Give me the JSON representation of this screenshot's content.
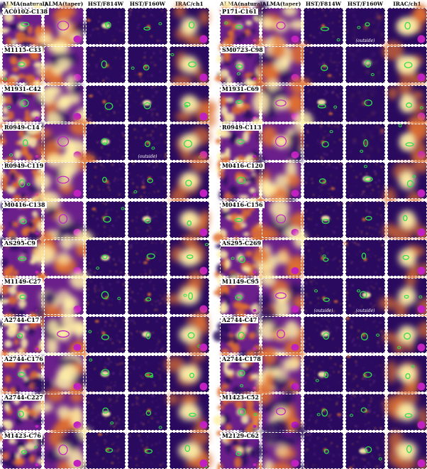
{
  "column_headers": [
    "ALMA(natural)",
    "ALMA(taper)",
    "HST/F814W",
    "HST/F160W",
    "IRAC/ch1"
  ],
  "panels": [
    {
      "rows": [
        {
          "label": "AC0102-C138",
          "outside": [
            "",
            "",
            "",
            "",
            ""
          ]
        },
        {
          "label": "M1115-C33",
          "outside": [
            "",
            "",
            "",
            "",
            ""
          ]
        },
        {
          "label": "M1931-C42",
          "outside": [
            "",
            "",
            "",
            "",
            ""
          ]
        },
        {
          "label": "R0949-C14",
          "outside": [
            "",
            "",
            "",
            "(outside)",
            ""
          ]
        },
        {
          "label": "R0949-C119",
          "outside": [
            "",
            "",
            "",
            "",
            ""
          ]
        },
        {
          "label": "M0416-C138",
          "outside": [
            "",
            "",
            "",
            "",
            ""
          ]
        },
        {
          "label": "AS295-C9",
          "outside": [
            "",
            "",
            "",
            "",
            ""
          ]
        },
        {
          "label": "M1149-C27",
          "outside": [
            "",
            "",
            "",
            "",
            ""
          ]
        },
        {
          "label": "A2744-C17",
          "outside": [
            "",
            "",
            "",
            "",
            ""
          ]
        },
        {
          "label": "A2744-C176",
          "outside": [
            "",
            "",
            "",
            "",
            ""
          ]
        },
        {
          "label": "A2744-C227",
          "outside": [
            "",
            "",
            "",
            "",
            ""
          ]
        },
        {
          "label": "M1423-C76",
          "outside": [
            "",
            "",
            "",
            "",
            ""
          ]
        }
      ]
    },
    {
      "rows": [
        {
          "label": "P171-C161",
          "outside": [
            "",
            "",
            "",
            "(outside)",
            ""
          ]
        },
        {
          "label": "SM0723-C98",
          "outside": [
            "",
            "",
            "",
            "",
            ""
          ]
        },
        {
          "label": "M1931-C69",
          "outside": [
            "",
            "",
            "",
            "",
            ""
          ]
        },
        {
          "label": "R0949-C113",
          "outside": [
            "",
            "",
            "",
            "",
            ""
          ]
        },
        {
          "label": "M0416-C120",
          "outside": [
            "",
            "",
            "",
            "",
            ""
          ]
        },
        {
          "label": "M0416-C156",
          "outside": [
            "",
            "",
            "",
            "",
            ""
          ]
        },
        {
          "label": "AS295-C269",
          "outside": [
            "",
            "",
            "",
            "",
            ""
          ]
        },
        {
          "label": "M1149-C95",
          "outside": [
            "",
            "",
            "(outside)",
            "(outside)",
            ""
          ]
        },
        {
          "label": "A2744-C47",
          "outside": [
            "",
            "",
            "",
            "",
            ""
          ]
        },
        {
          "label": "A2744-C178",
          "outside": [
            "",
            "",
            "",
            "",
            ""
          ]
        },
        {
          "label": "M1423-C52",
          "outside": [
            "",
            "",
            "",
            "",
            ""
          ]
        },
        {
          "label": "M2129-C62",
          "outside": [
            "",
            "",
            "",
            "",
            ""
          ]
        }
      ]
    }
  ],
  "colors": {
    "background_dark": "#2a0a5e",
    "mid_purple": "#6a1f8a",
    "orange": "#e07030",
    "yellow": "#fff0a8",
    "contour_green": "#2ee04a",
    "contour_magenta": "#c020c0"
  }
}
